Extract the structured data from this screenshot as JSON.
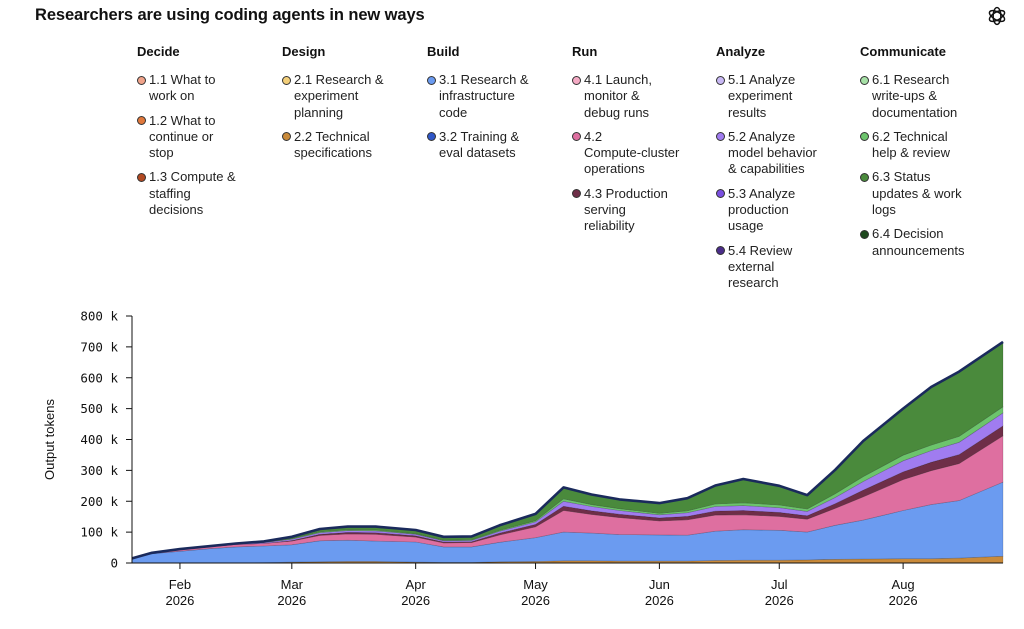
{
  "title": "Researchers are using coding agents in new ways",
  "logo_icon": "openai-logo-icon",
  "legend": [
    {
      "key": "decide",
      "title": "Decide",
      "items": [
        {
          "label": "1.1 What to work on",
          "lines": [
            "1.1 What to",
            "work on"
          ],
          "color": "#f0a38a"
        },
        {
          "label": "1.2 What to continue or stop",
          "lines": [
            "1.2 What to",
            "continue or",
            "stop"
          ],
          "color": "#e0783c"
        },
        {
          "label": "1.3 Compute & staffing decisions",
          "lines": [
            "1.3 Compute &",
            "staffing",
            "decisions"
          ],
          "color": "#b24a22"
        }
      ]
    },
    {
      "key": "design",
      "title": "Design",
      "items": [
        {
          "label": "2.1 Research & experiment planning",
          "lines": [
            "2.1 Research &",
            "experiment",
            "planning"
          ],
          "color": "#f3cf7a"
        },
        {
          "label": "2.2 Technical specifications",
          "lines": [
            "2.2 Technical",
            "specifications"
          ],
          "color": "#c98a3a"
        }
      ]
    },
    {
      "key": "build",
      "title": "Build",
      "items": [
        {
          "label": "3.1 Research & infrastructure code",
          "lines": [
            "3.1 Research &",
            "infrastructure",
            "code"
          ],
          "color": "#6b9bf0"
        },
        {
          "label": "3.2 Training & eval datasets",
          "lines": [
            "3.2 Training &",
            "eval datasets"
          ],
          "color": "#2f57c8"
        }
      ]
    },
    {
      "key": "run",
      "title": "Run",
      "items": [
        {
          "label": "4.1 Launch, monitor & debug runs",
          "lines": [
            "4.1 Launch,",
            "monitor &",
            "debug runs"
          ],
          "color": "#f4aac4"
        },
        {
          "label": "4.2 Compute-cluster operations",
          "lines": [
            "4.2",
            "Compute-cluster",
            "operations"
          ],
          "color": "#de6fa0"
        },
        {
          "label": "4.3 Production serving reliability",
          "lines": [
            "4.3 Production",
            "serving",
            "reliability"
          ],
          "color": "#6e2e48"
        }
      ]
    },
    {
      "key": "analyze",
      "title": "Analyze",
      "items": [
        {
          "label": "5.1 Analyze experiment results",
          "lines": [
            "5.1 Analyze",
            "experiment",
            "results"
          ],
          "color": "#c8b8f4"
        },
        {
          "label": "5.2 Analyze model behavior & capabilities",
          "lines": [
            "5.2 Analyze",
            "model behavior",
            "& capabilities"
          ],
          "color": "#a07cf0"
        },
        {
          "label": "5.3 Analyze production usage",
          "lines": [
            "5.3 Analyze",
            "production",
            "usage"
          ],
          "color": "#7a4fe0"
        },
        {
          "label": "5.4 Review external research",
          "lines": [
            "5.4 Review",
            "external",
            "research"
          ],
          "color": "#4b2d8a"
        }
      ]
    },
    {
      "key": "communicate",
      "title": "Communicate",
      "items": [
        {
          "label": "6.1 Research write-ups & documentation",
          "lines": [
            "6.1 Research",
            "write-ups &",
            "documentation"
          ],
          "color": "#a6e0a6"
        },
        {
          "label": "6.2 Technical help & review",
          "lines": [
            "6.2 Technical",
            "help & review"
          ],
          "color": "#6cc46c"
        },
        {
          "label": "6.3 Status updates & work logs",
          "lines": [
            "6.3 Status",
            "updates & work",
            "logs"
          ],
          "color": "#4a8a3c"
        },
        {
          "label": "6.4 Decision announcements",
          "lines": [
            "6.4 Decision",
            "announcements"
          ],
          "color": "#1f4a1f"
        }
      ]
    }
  ],
  "chart_data": {
    "type": "area",
    "stacked": true,
    "ylabel": "Output tokens",
    "ylim": [
      0,
      800000
    ],
    "yticks": [
      0,
      100000,
      200000,
      300000,
      400000,
      500000,
      600000,
      700000,
      800000
    ],
    "ytick_labels": [
      "0",
      "100 k",
      "200 k",
      "300 k",
      "400 k",
      "500 k",
      "600 k",
      "700 k",
      "800 k"
    ],
    "xlim": [
      "2026-01-20",
      "2026-08-26"
    ],
    "xticks": [
      "2026-02-01",
      "2026-03-01",
      "2026-04-01",
      "2026-05-01",
      "2026-06-01",
      "2026-07-01",
      "2026-08-01"
    ],
    "xtick_labels": [
      [
        "Feb",
        "2026"
      ],
      [
        "Mar",
        "2026"
      ],
      [
        "Apr",
        "2026"
      ],
      [
        "May",
        "2026"
      ],
      [
        "Jun",
        "2026"
      ],
      [
        "Jul",
        "2026"
      ],
      [
        "Aug",
        "2026"
      ]
    ],
    "outline_color": "#1a2a5c",
    "x": [
      "2026-01-20",
      "2026-01-25",
      "2026-02-01",
      "2026-02-08",
      "2026-02-15",
      "2026-02-22",
      "2026-03-01",
      "2026-03-08",
      "2026-03-15",
      "2026-03-22",
      "2026-04-01",
      "2026-04-08",
      "2026-04-15",
      "2026-04-22",
      "2026-05-01",
      "2026-05-08",
      "2026-05-15",
      "2026-05-22",
      "2026-06-01",
      "2026-06-08",
      "2026-06-15",
      "2026-06-22",
      "2026-07-01",
      "2026-07-08",
      "2026-07-15",
      "2026-07-22",
      "2026-08-01",
      "2026-08-08",
      "2026-08-15",
      "2026-08-26"
    ],
    "series": [
      {
        "name": "2.2 Technical specifications",
        "color": "#c98a3a",
        "values": [
          0,
          0,
          0,
          0,
          0,
          1000,
          3000,
          4000,
          5000,
          5000,
          3000,
          2000,
          2000,
          4000,
          5000,
          7000,
          7000,
          6000,
          6000,
          6000,
          8000,
          9000,
          9000,
          10000,
          12000,
          13000,
          14000,
          14000,
          16000,
          22000
        ]
      },
      {
        "name": "3.1 Research & infrastructure code",
        "color": "#6b9bf0",
        "values": [
          15000,
          30000,
          38000,
          46000,
          52000,
          54000,
          56000,
          68000,
          69000,
          66000,
          65000,
          50000,
          50000,
          63000,
          77000,
          93000,
          90000,
          86000,
          85000,
          84000,
          95000,
          99000,
          97000,
          90000,
          110000,
          126000,
          156000,
          175000,
          186000,
          240000
        ]
      },
      {
        "name": "4.2 Compute-cluster operations",
        "color": "#de6fa0",
        "values": [
          0,
          3000,
          5000,
          6000,
          8000,
          8000,
          12000,
          17000,
          20000,
          22000,
          16000,
          13000,
          14000,
          24000,
          35000,
          70000,
          60000,
          55000,
          45000,
          50000,
          52000,
          48000,
          45000,
          42000,
          55000,
          75000,
          100000,
          110000,
          120000,
          150000
        ]
      },
      {
        "name": "4.3 Production serving reliability",
        "color": "#6e2e48",
        "values": [
          0,
          0,
          0,
          0,
          0,
          0,
          2000,
          4000,
          5000,
          5000,
          4000,
          3000,
          3000,
          6000,
          8000,
          14000,
          12000,
          11000,
          10000,
          11000,
          13000,
          14000,
          13000,
          11000,
          15000,
          22000,
          25000,
          27000,
          29000,
          32000
        ]
      },
      {
        "name": "5.2 Analyze model behavior & capabilities",
        "color": "#a07cf0",
        "values": [
          0,
          0,
          2000,
          2000,
          3000,
          3000,
          4000,
          5000,
          6000,
          6000,
          5000,
          4000,
          4000,
          6000,
          8000,
          16000,
          14000,
          12000,
          10000,
          12000,
          15000,
          16000,
          15000,
          14000,
          20000,
          28000,
          36000,
          38000,
          40000,
          42000
        ]
      },
      {
        "name": "6.2 Technical help & review",
        "color": "#6cc46c",
        "values": [
          0,
          0,
          0,
          0,
          0,
          0,
          2000,
          3000,
          3000,
          3000,
          2000,
          2000,
          2000,
          3000,
          4000,
          8000,
          6000,
          6000,
          5000,
          6000,
          8000,
          9000,
          9000,
          8000,
          12000,
          16000,
          18000,
          18000,
          19000,
          20000
        ]
      },
      {
        "name": "6.3 Status updates & work logs",
        "color": "#4a8a3c",
        "values": [
          0,
          0,
          0,
          0,
          0,
          4000,
          6000,
          9000,
          10000,
          11000,
          12000,
          11000,
          11000,
          16000,
          22000,
          37000,
          33000,
          30000,
          33000,
          41000,
          60000,
          77000,
          62000,
          45000,
          78000,
          115000,
          151000,
          188000,
          210000,
          210000
        ]
      }
    ]
  }
}
